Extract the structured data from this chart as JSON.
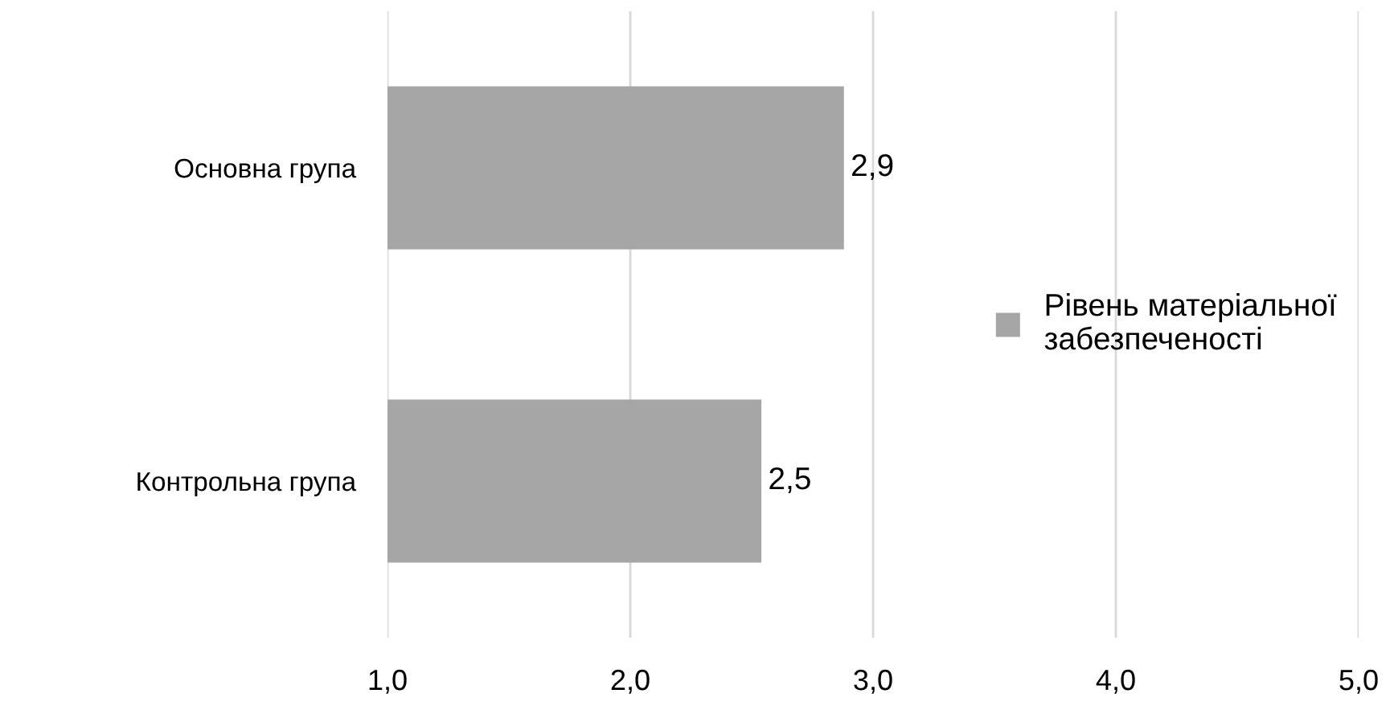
{
  "chart_data": {
    "type": "bar",
    "orientation": "horizontal",
    "categories": [
      "Основна група",
      "Контрольна група"
    ],
    "series": [
      {
        "name": "Рівень матеріальної забезпеченості",
        "color": "#a6a6a6",
        "values": [
          2.88,
          2.54
        ],
        "value_labels": [
          "2,9",
          "2,5"
        ]
      }
    ],
    "xlim": [
      1,
      5
    ],
    "xticks": [
      {
        "value": 1,
        "label": "1,0"
      },
      {
        "value": 2,
        "label": "2,0"
      },
      {
        "value": 3,
        "label": "3,0"
      },
      {
        "value": 4,
        "label": "4,0"
      },
      {
        "value": 5,
        "label": "5,0"
      }
    ],
    "grid": "x",
    "legend": "right"
  }
}
